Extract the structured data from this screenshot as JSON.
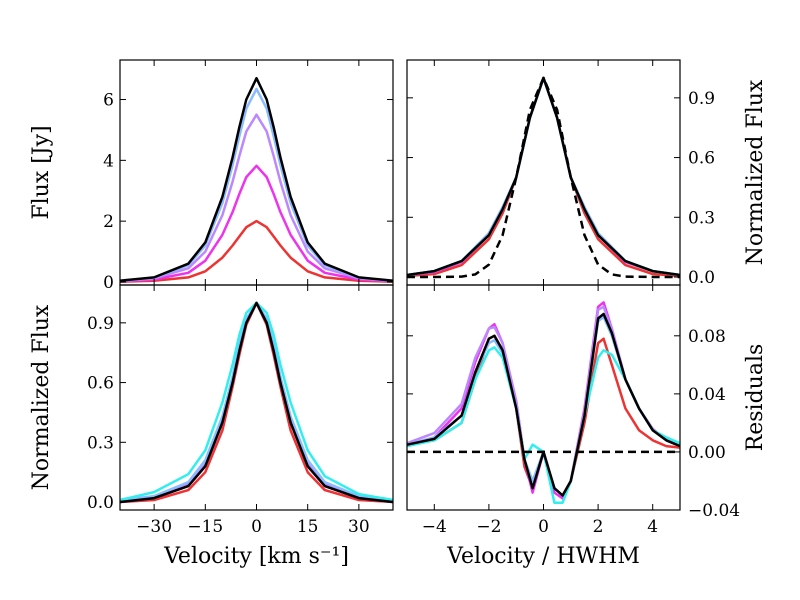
{
  "colors": {
    "red": "#ee3333",
    "magenta": "#ee33ee",
    "violet": "#bb88ff",
    "lightblue": "#88bbff",
    "cyan": "#33eeee",
    "black": "#000000"
  },
  "chart_data": [
    {
      "id": "tl",
      "type": "line",
      "ylabel": "Flux [Jy]",
      "xlim": [
        -40,
        40
      ],
      "ylim": [
        -0.1,
        7.3
      ],
      "yticks": [
        0,
        2,
        4,
        6
      ],
      "ytick_labels": [
        "0",
        "2",
        "4",
        "6"
      ],
      "grid": false,
      "series": [
        {
          "color": "red",
          "x": [
            -40,
            -30,
            -20,
            -15,
            -10,
            -7,
            -5,
            -3,
            0,
            3,
            5,
            7,
            10,
            15,
            20,
            30,
            40
          ],
          "y": [
            0.01,
            0.04,
            0.15,
            0.35,
            0.8,
            1.2,
            1.5,
            1.8,
            2.0,
            1.8,
            1.5,
            1.2,
            0.8,
            0.35,
            0.15,
            0.04,
            0.01
          ]
        },
        {
          "color": "magenta",
          "x": [
            -40,
            -30,
            -20,
            -15,
            -10,
            -7,
            -5,
            -3,
            0,
            3,
            5,
            7,
            10,
            15,
            20,
            30,
            40
          ],
          "y": [
            0.02,
            0.08,
            0.3,
            0.7,
            1.55,
            2.3,
            2.9,
            3.45,
            3.82,
            3.45,
            2.9,
            2.3,
            1.55,
            0.7,
            0.3,
            0.08,
            0.02
          ]
        },
        {
          "color": "violet",
          "x": [
            -40,
            -30,
            -20,
            -15,
            -10,
            -7,
            -5,
            -3,
            0,
            3,
            5,
            7,
            10,
            15,
            20,
            30,
            40
          ],
          "y": [
            0.03,
            0.12,
            0.45,
            1.0,
            2.2,
            3.3,
            4.15,
            4.95,
            5.5,
            4.95,
            4.15,
            3.3,
            2.2,
            1.0,
            0.45,
            0.12,
            0.03
          ]
        },
        {
          "color": "lightblue",
          "x": [
            -40,
            -30,
            -20,
            -15,
            -10,
            -7,
            -5,
            -3,
            0,
            3,
            5,
            7,
            10,
            15,
            20,
            30,
            40
          ],
          "y": [
            0.04,
            0.14,
            0.55,
            1.2,
            2.6,
            3.85,
            4.8,
            5.7,
            6.35,
            5.7,
            4.8,
            3.85,
            2.6,
            1.2,
            0.55,
            0.14,
            0.04
          ]
        },
        {
          "color": "black",
          "x": [
            -40,
            -30,
            -20,
            -15,
            -10,
            -7,
            -5,
            -3,
            0,
            3,
            5,
            7,
            10,
            15,
            20,
            30,
            40
          ],
          "y": [
            0.04,
            0.15,
            0.6,
            1.3,
            2.8,
            4.1,
            5.1,
            6.0,
            6.7,
            6.0,
            5.1,
            4.1,
            2.8,
            1.3,
            0.6,
            0.15,
            0.04
          ]
        }
      ]
    },
    {
      "id": "tr",
      "type": "line",
      "ylabel": "Normalized Flux",
      "xlim": [
        -5,
        5
      ],
      "ylim": [
        -0.04,
        1.09
      ],
      "yticks": [
        0.0,
        0.3,
        0.6,
        0.9
      ],
      "ytick_labels": [
        "0.0",
        "0.3",
        "0.6",
        "0.9"
      ],
      "grid": false,
      "series": [
        {
          "color": "red",
          "x": [
            -5,
            -4,
            -3,
            -2,
            -1.5,
            -1,
            -0.5,
            0,
            0.5,
            1,
            1.5,
            2,
            3,
            4,
            5
          ],
          "y": [
            0.005,
            0.015,
            0.06,
            0.19,
            0.32,
            0.5,
            0.8,
            1.0,
            0.8,
            0.5,
            0.32,
            0.19,
            0.06,
            0.015,
            0.005
          ]
        },
        {
          "color": "magenta",
          "x": [
            -5,
            -4,
            -3,
            -2,
            -1.5,
            -1,
            -0.5,
            0,
            0.5,
            1,
            1.5,
            2,
            3,
            4,
            5
          ],
          "y": [
            0.01,
            0.025,
            0.075,
            0.21,
            0.34,
            0.5,
            0.8,
            1.0,
            0.8,
            0.5,
            0.34,
            0.21,
            0.075,
            0.03,
            0.01
          ]
        },
        {
          "color": "violet",
          "x": [
            -5,
            -4,
            -3,
            -2,
            -1.5,
            -1,
            -0.5,
            0,
            0.5,
            1,
            1.5,
            2,
            3,
            4,
            5
          ],
          "y": [
            0.01,
            0.03,
            0.08,
            0.22,
            0.35,
            0.5,
            0.8,
            1.0,
            0.8,
            0.5,
            0.35,
            0.22,
            0.08,
            0.03,
            0.01
          ]
        },
        {
          "color": "lightblue",
          "x": [
            -5,
            -4,
            -3,
            -2,
            -1.5,
            -1,
            -0.5,
            0,
            0.5,
            1,
            1.5,
            2,
            3,
            4,
            5
          ],
          "y": [
            0.01,
            0.03,
            0.08,
            0.22,
            0.35,
            0.5,
            0.8,
            1.0,
            0.8,
            0.5,
            0.35,
            0.22,
            0.08,
            0.03,
            0.01
          ]
        },
        {
          "color": "cyan",
          "x": [
            -5,
            -4,
            -3,
            -2,
            -1.5,
            -1,
            -0.5,
            0,
            0.5,
            1,
            1.5,
            2,
            3,
            4,
            5
          ],
          "y": [
            0.01,
            0.03,
            0.08,
            0.21,
            0.34,
            0.5,
            0.8,
            1.0,
            0.8,
            0.5,
            0.34,
            0.21,
            0.08,
            0.03,
            0.01
          ]
        },
        {
          "color": "black",
          "x": [
            -5,
            -4,
            -3,
            -2,
            -1.5,
            -1,
            -0.5,
            0,
            0.5,
            1,
            1.5,
            2,
            3,
            4,
            5
          ],
          "y": [
            0.01,
            0.03,
            0.08,
            0.21,
            0.34,
            0.5,
            0.8,
            1.0,
            0.8,
            0.5,
            0.34,
            0.21,
            0.08,
            0.03,
            0.01
          ]
        },
        {
          "color": "black",
          "dashed": true,
          "x": [
            -5,
            -4,
            -3,
            -2.5,
            -2,
            -1.5,
            -1,
            -0.5,
            0,
            0.5,
            1,
            1.5,
            2,
            2.5,
            3,
            4,
            5
          ],
          "y": [
            0.0,
            0.0,
            0.002,
            0.013,
            0.0625,
            0.21,
            0.5,
            0.84,
            1.0,
            0.84,
            0.5,
            0.21,
            0.0625,
            0.013,
            0.002,
            0.0,
            0.0
          ]
        }
      ]
    },
    {
      "id": "bl",
      "type": "line",
      "xlabel": "Velocity [km s⁻¹]",
      "ylabel": "Normalized Flux",
      "xlim": [
        -40,
        40
      ],
      "ylim": [
        -0.04,
        1.09
      ],
      "xticks": [
        -30,
        -15,
        0,
        15,
        30
      ],
      "xtick_labels": [
        "−30",
        "−15",
        "0",
        "15",
        "30"
      ],
      "yticks": [
        0.0,
        0.3,
        0.6,
        0.9
      ],
      "ytick_labels": [
        "0.0",
        "0.3",
        "0.6",
        "0.9"
      ],
      "grid": false,
      "series": [
        {
          "color": "red",
          "x": [
            -40,
            -30,
            -20,
            -15,
            -10,
            -7,
            -5,
            -3,
            0,
            3,
            5,
            7,
            10,
            15,
            20,
            30,
            40
          ],
          "y": [
            0.0,
            0.01,
            0.06,
            0.15,
            0.36,
            0.58,
            0.74,
            0.89,
            1.0,
            0.89,
            0.74,
            0.58,
            0.36,
            0.15,
            0.06,
            0.01,
            0.0
          ]
        },
        {
          "color": "magenta",
          "x": [
            -40,
            -30,
            -20,
            -15,
            -10,
            -7,
            -5,
            -3,
            0,
            3,
            5,
            7,
            10,
            15,
            20,
            30,
            40
          ],
          "y": [
            0.0,
            0.02,
            0.08,
            0.18,
            0.4,
            0.6,
            0.76,
            0.9,
            1.0,
            0.9,
            0.76,
            0.6,
            0.4,
            0.18,
            0.08,
            0.02,
            0.0
          ]
        },
        {
          "color": "violet",
          "x": [
            -40,
            -30,
            -20,
            -15,
            -10,
            -7,
            -5,
            -3,
            0,
            3,
            5,
            7,
            10,
            15,
            20,
            30,
            40
          ],
          "y": [
            0.01,
            0.02,
            0.09,
            0.19,
            0.41,
            0.61,
            0.77,
            0.91,
            1.0,
            0.91,
            0.77,
            0.61,
            0.41,
            0.19,
            0.09,
            0.02,
            0.01
          ]
        },
        {
          "color": "lightblue",
          "x": [
            -40,
            -30,
            -20,
            -15,
            -10,
            -7,
            -5,
            -3,
            0,
            3,
            5,
            7,
            10,
            15,
            20,
            30,
            40
          ],
          "y": [
            0.01,
            0.03,
            0.1,
            0.21,
            0.43,
            0.63,
            0.79,
            0.92,
            1.0,
            0.92,
            0.79,
            0.63,
            0.43,
            0.21,
            0.1,
            0.03,
            0.01
          ]
        },
        {
          "color": "cyan",
          "x": [
            -40,
            -30,
            -20,
            -15,
            -10,
            -7,
            -5,
            -3,
            0,
            3,
            5,
            7,
            10,
            15,
            20,
            30,
            40
          ],
          "y": [
            0.01,
            0.05,
            0.14,
            0.26,
            0.5,
            0.69,
            0.84,
            0.95,
            1.0,
            0.95,
            0.84,
            0.69,
            0.5,
            0.26,
            0.13,
            0.04,
            0.01
          ]
        },
        {
          "color": "black",
          "x": [
            -40,
            -30,
            -20,
            -15,
            -10,
            -7,
            -5,
            -3,
            0,
            3,
            5,
            7,
            10,
            15,
            20,
            30,
            40
          ],
          "y": [
            0.0,
            0.02,
            0.08,
            0.18,
            0.4,
            0.6,
            0.76,
            0.9,
            1.0,
            0.9,
            0.76,
            0.6,
            0.4,
            0.18,
            0.08,
            0.02,
            0.0
          ]
        }
      ]
    },
    {
      "id": "br",
      "type": "line",
      "xlabel": "Velocity / HWHM",
      "ylabel": "Residuals",
      "xlim": [
        -5,
        5
      ],
      "ylim": [
        -0.04,
        0.115
      ],
      "xticks": [
        -4,
        -2,
        0,
        2,
        4
      ],
      "xtick_labels": [
        "−4",
        "−2",
        "0",
        "2",
        "4"
      ],
      "yticks": [
        -0.04,
        0.0,
        0.04,
        0.08
      ],
      "ytick_labels": [
        "−0.04",
        "0.00",
        "0.04",
        "0.08"
      ],
      "grid": false,
      "series": [
        {
          "color": "red",
          "x": [
            -5,
            -4,
            -3,
            -2.5,
            -2,
            -1.8,
            -1.5,
            -1,
            -0.7,
            -0.4,
            0,
            0.4,
            0.7,
            1,
            1.5,
            2,
            2.2,
            2.5,
            3,
            3.5,
            4,
            4.5,
            5
          ],
          "y": [
            0.005,
            0.008,
            0.02,
            0.05,
            0.078,
            0.08,
            0.07,
            0.03,
            -0.01,
            -0.025,
            0.0,
            -0.025,
            -0.03,
            -0.02,
            0.02,
            0.075,
            0.078,
            0.06,
            0.03,
            0.015,
            0.008,
            0.004,
            0.003
          ]
        },
        {
          "color": "magenta",
          "x": [
            -5,
            -4,
            -3,
            -2.5,
            -2,
            -1.8,
            -1.5,
            -1,
            -0.7,
            -0.4,
            0,
            0.4,
            0.7,
            1,
            1.5,
            2,
            2.2,
            2.5,
            3,
            3.5,
            4,
            4.5,
            5
          ],
          "y": [
            0.005,
            0.01,
            0.03,
            0.062,
            0.085,
            0.088,
            0.075,
            0.035,
            -0.005,
            -0.028,
            0.0,
            -0.028,
            -0.032,
            -0.02,
            0.03,
            0.1,
            0.103,
            0.085,
            0.05,
            0.03,
            0.015,
            0.008,
            0.004
          ]
        },
        {
          "color": "violet",
          "x": [
            -5,
            -4,
            -3,
            -2.5,
            -2,
            -1.8,
            -1.5,
            -1,
            -0.7,
            -0.4,
            0,
            0.4,
            0.7,
            1,
            1.5,
            2,
            2.2,
            2.5,
            3,
            3.5,
            4,
            4.5,
            5
          ],
          "y": [
            0.006,
            0.013,
            0.033,
            0.065,
            0.085,
            0.086,
            0.075,
            0.035,
            -0.005,
            -0.025,
            0.0,
            -0.025,
            -0.03,
            -0.02,
            0.028,
            0.098,
            0.1,
            0.085,
            0.05,
            0.03,
            0.016,
            0.008,
            0.004
          ]
        },
        {
          "color": "lightblue",
          "x": [
            -5,
            -4,
            -3,
            -2.5,
            -2,
            -1.8,
            -1.5,
            -1,
            -0.7,
            -0.4,
            0,
            0.4,
            0.7,
            1,
            1.5,
            2,
            2.2,
            2.5,
            3,
            3.5,
            4,
            4.5,
            5
          ],
          "y": [
            0.005,
            0.01,
            0.025,
            0.055,
            0.075,
            0.077,
            0.068,
            0.03,
            -0.005,
            -0.02,
            0.0,
            -0.025,
            -0.03,
            -0.02,
            0.025,
            0.09,
            0.093,
            0.08,
            0.05,
            0.03,
            0.015,
            0.008,
            0.005
          ]
        },
        {
          "color": "cyan",
          "x": [
            -5,
            -4,
            -3,
            -2.5,
            -2,
            -1.8,
            -1.5,
            -1,
            -0.7,
            -0.4,
            0,
            0.4,
            0.7,
            1,
            1.5,
            2,
            2.2,
            2.5,
            3,
            3.5,
            4,
            4.5,
            5
          ],
          "y": [
            0.004,
            0.008,
            0.02,
            0.05,
            0.07,
            0.072,
            0.065,
            0.03,
            -0.005,
            0.005,
            0.0,
            -0.035,
            -0.035,
            -0.02,
            0.025,
            0.065,
            0.07,
            0.067,
            0.05,
            0.03,
            0.015,
            0.01,
            0.006
          ]
        },
        {
          "color": "black",
          "x": [
            -5,
            -4,
            -3,
            -2.5,
            -2,
            -1.8,
            -1.5,
            -1,
            -0.7,
            -0.4,
            0,
            0.4,
            0.7,
            1,
            1.5,
            2,
            2.2,
            2.5,
            3,
            3.5,
            4,
            4.5,
            5
          ],
          "y": [
            0.005,
            0.009,
            0.025,
            0.055,
            0.078,
            0.08,
            0.07,
            0.03,
            -0.005,
            -0.025,
            0.0,
            -0.025,
            -0.03,
            -0.02,
            0.025,
            0.092,
            0.095,
            0.082,
            0.05,
            0.03,
            0.015,
            0.008,
            0.004
          ]
        },
        {
          "color": "black",
          "dashed": true,
          "x": [
            -5,
            5
          ],
          "y": [
            0.0,
            0.0
          ]
        }
      ]
    }
  ]
}
